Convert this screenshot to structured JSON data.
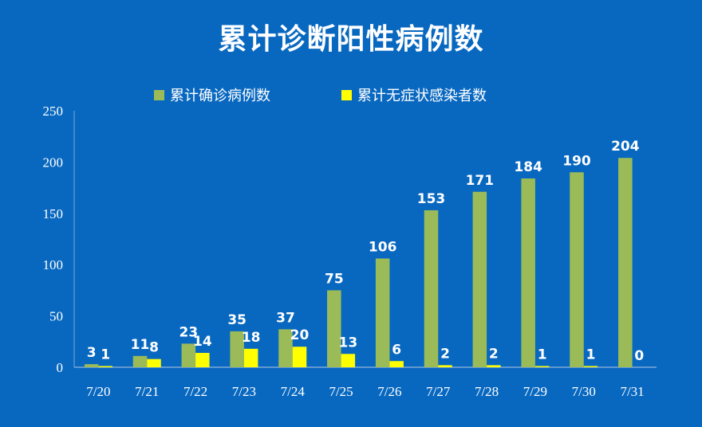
{
  "chart_data": {
    "type": "bar",
    "title": "累计诊断阳性病例数",
    "categories": [
      "7/20",
      "7/21",
      "7/22",
      "7/23",
      "7/24",
      "7/25",
      "7/26",
      "7/27",
      "7/28",
      "7/29",
      "7/30",
      "7/31"
    ],
    "series": [
      {
        "name": "累计确诊病例数",
        "color": "#9bbb59",
        "values": [
          3,
          11,
          23,
          35,
          37,
          75,
          106,
          153,
          171,
          184,
          190,
          204
        ]
      },
      {
        "name": "累计无症状感染者数",
        "color": "#ffff00",
        "values": [
          1,
          8,
          14,
          18,
          20,
          13,
          6,
          2,
          2,
          1,
          1,
          0
        ]
      }
    ],
    "ylim": [
      0,
      250
    ],
    "yticks": [
      0,
      50,
      100,
      150,
      200,
      250
    ],
    "grid": false,
    "legend": "top",
    "background": "#0868c0"
  }
}
